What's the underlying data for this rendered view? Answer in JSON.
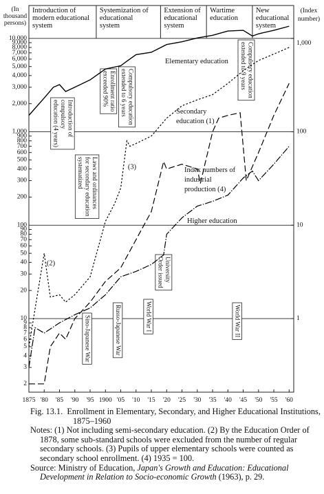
{
  "chart_data": {
    "type": "line",
    "log_scale": true,
    "units_left": [
      "(In",
      "thousand",
      "persons)"
    ],
    "units_right": [
      "(Index",
      "number)"
    ],
    "xlim": [
      1875,
      1961.5
    ],
    "ylim": [
      1.63,
      22500
    ],
    "y2lim": [
      0.163,
      2250
    ],
    "xticks": [
      1875,
      {
        "value": 1880,
        "label": "'80"
      },
      {
        "value": 1885,
        "label": "'85"
      },
      {
        "value": 1890,
        "label": "'90"
      },
      {
        "value": 1895,
        "label": "'95"
      },
      1900,
      {
        "value": 1905,
        "label": "'05"
      },
      {
        "value": 1910,
        "label": "'10"
      },
      {
        "value": 1915,
        "label": "'15"
      },
      {
        "value": 1920,
        "label": "'20"
      },
      {
        "value": 1925,
        "label": "'25"
      },
      {
        "value": 1930,
        "label": "'30"
      },
      {
        "value": 1935,
        "label": "'35"
      },
      {
        "value": 1940,
        "label": "'40"
      },
      {
        "value": 1945,
        "label": "'45"
      },
      {
        "value": 1950,
        "label": "'50"
      },
      {
        "value": 1955,
        "label": "'55"
      },
      {
        "value": 1960,
        "label": "'60"
      }
    ],
    "yticks": [
      {
        "value": 10000,
        "label": "10,000"
      },
      {
        "value": 9000,
        "label": "9,000"
      },
      {
        "value": 8000,
        "label": "8,000"
      },
      {
        "value": 7000,
        "label": "7,000"
      },
      {
        "value": 6000,
        "label": "6,000"
      },
      {
        "value": 5000,
        "label": "5,000"
      },
      {
        "value": 4000,
        "label": "4,000"
      },
      {
        "value": 3000,
        "label": "3,000"
      },
      {
        "value": 2000,
        "label": "2,000"
      },
      {
        "value": 1000,
        "label": "1,000"
      },
      900,
      800,
      700,
      600,
      500,
      400,
      300,
      200,
      100,
      90,
      80,
      70,
      60,
      50,
      40,
      30,
      20,
      10,
      9,
      8,
      7,
      6,
      5,
      4,
      3,
      2
    ],
    "y2ticks": [
      {
        "value": 1000,
        "label": "1,000"
      },
      100,
      10,
      1
    ],
    "eras": [
      {
        "start": 1875,
        "label": [
          "Introduction of",
          "modern educational",
          "system"
        ]
      },
      {
        "start": 1897,
        "label": [
          "Systemization of",
          "educational",
          "system"
        ]
      },
      {
        "start": 1918,
        "label": [
          "Extension of",
          "educational",
          "system"
        ]
      },
      {
        "start": 1933,
        "label": [
          "Wartime",
          "education"
        ]
      },
      {
        "start": 1948,
        "label": [
          "New",
          "educational",
          "system"
        ]
      }
    ],
    "series": [
      {
        "name": [
          "Elementary education"
        ],
        "color": "#000000",
        "style": "solid",
        "x": [
          1875,
          1880,
          1883,
          1885,
          1887,
          1890,
          1895,
          1900,
          1905,
          1907,
          1910,
          1915,
          1920,
          1925,
          1930,
          1935,
          1940,
          1945,
          1948,
          1950,
          1955,
          1960
        ],
        "values": [
          1500,
          2300,
          3000,
          3200,
          2700,
          3000,
          3600,
          4700,
          5100,
          5700,
          6700,
          7100,
          8600,
          9200,
          10100,
          10800,
          12000,
          12200,
          10600,
          11200,
          12200,
          13500
        ]
      },
      {
        "name": [
          "Secondary",
          "education (1)"
        ],
        "color": "#000000",
        "style": "dotted",
        "x": [
          1875,
          1878,
          1880,
          1882,
          1885,
          1887,
          1890,
          1895,
          1900,
          1903,
          1905,
          1907,
          1908,
          1910,
          1915,
          1920,
          1925,
          1930,
          1935,
          1940,
          1945,
          1947,
          1950,
          1955,
          1960
        ],
        "values": [
          5,
          20,
          50,
          17,
          18,
          15,
          18,
          28,
          110,
          170,
          250,
          800,
          700,
          750,
          900,
          1400,
          1900,
          2200,
          2500,
          3300,
          4500,
          5000,
          5800,
          6800,
          8000
        ]
      },
      {
        "name": [
          "Index numbers of",
          "industrial",
          "production (4)"
        ],
        "color": "#000000",
        "style": "dashed",
        "axis": "y2",
        "x": [
          1875,
          1880,
          1882,
          1885,
          1887,
          1890,
          1895,
          1900,
          1905,
          1910,
          1915,
          1919,
          1920,
          1925,
          1930,
          1931,
          1935,
          1937,
          1940,
          1944,
          1946,
          1950,
          1955,
          1960
        ],
        "values": [
          0.2,
          0.2,
          0.5,
          0.7,
          0.6,
          1.0,
          1.5,
          2.5,
          3.5,
          7,
          14,
          48,
          40,
          45,
          40,
          28,
          100,
          140,
          150,
          160,
          30,
          60,
          150,
          330
        ]
      },
      {
        "name": [
          "Higher education"
        ],
        "color": "#000000",
        "style": "dash-dot",
        "x": [
          1875,
          1877,
          1880,
          1885,
          1890,
          1895,
          1900,
          1905,
          1910,
          1915,
          1919,
          1920,
          1925,
          1930,
          1935,
          1940,
          1945,
          1948,
          1950,
          1955,
          1960
        ],
        "values": [
          3,
          8,
          7,
          9,
          11,
          13,
          18,
          28,
          32,
          38,
          48,
          80,
          120,
          160,
          180,
          210,
          320,
          380,
          300,
          450,
          700
        ]
      }
    ],
    "annotations": [
      "(2)",
      "(3)"
    ],
    "events": [
      {
        "year": 1886,
        "label": [
          "Introduction of",
          "compulsory",
          "education (4 years)"
        ]
      },
      {
        "year": 1894,
        "label": [
          "Laws and ordinances",
          "for secondary education",
          "systematized"
        ]
      },
      {
        "year": 1901,
        "label": [
          "Enrollment ratio",
          "exceeded 90%"
        ]
      },
      {
        "year": 1907,
        "label": [
          "Compulsory education",
          "extended to 6 years"
        ]
      },
      {
        "year": 1919,
        "label": [
          "University",
          "Order issued"
        ]
      },
      {
        "year": 1946,
        "label": [
          "Compulsory education",
          "extended to 9 years"
        ]
      },
      {
        "year": 1894,
        "label": [
          "Sino-Japanese War"
        ]
      },
      {
        "year": 1904,
        "label": [
          "Russo-Japanese War"
        ]
      },
      {
        "year": 1914,
        "label": [
          "World War I"
        ]
      },
      {
        "year": 1943,
        "label": [
          "World War II"
        ]
      }
    ]
  },
  "caption": {
    "figure": "Fig. 13.1.",
    "title": "Enrollment in Elementary, Secondary, and Higher Educational Institutions, 1875–1960",
    "notes": "Notes: (1) Not including semi-secondary education. (2) By the Education Order of 1878, some sub-standard schools were excluded from the number of regular secondary schools. (3) Pupils of upper elementary schools were counted as secondary school enrollment. (4) 1935 = 100.",
    "source_prefix": "Source: Ministry of Education, ",
    "source_title": "Japan's Growth and Education: Educational Development in Relation to Socio-economic Growth",
    "source_suffix": " (1963), p. 29."
  }
}
